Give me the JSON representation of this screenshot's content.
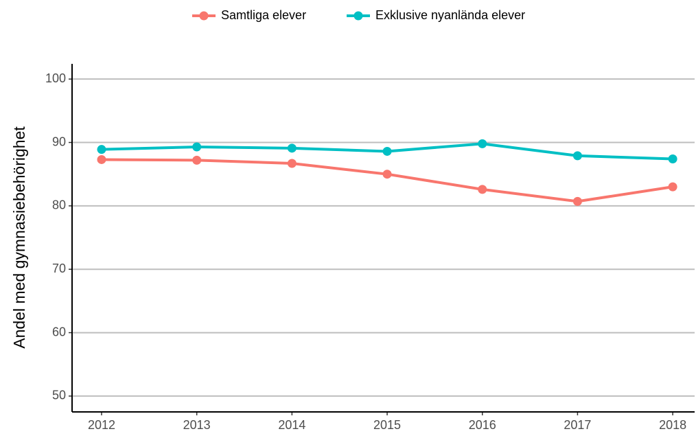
{
  "chart_data": {
    "type": "line",
    "y_label": "Andel med gymnasiebehörighet",
    "x": [
      2012,
      2013,
      2014,
      2015,
      2016,
      2017,
      2018
    ],
    "series": [
      {
        "name": "Samtliga elever",
        "color": "#f8766d",
        "values": [
          87.3,
          87.2,
          86.7,
          85.0,
          82.6,
          80.7,
          83.0
        ]
      },
      {
        "name": "Exklusive nyanlända elever",
        "color": "#00bfc4",
        "values": [
          88.9,
          89.3,
          89.1,
          88.6,
          89.8,
          87.9,
          87.4
        ]
      }
    ],
    "xlim": [
      2011.69,
      2018.23
    ],
    "xticks": [
      2012,
      2013,
      2014,
      2015,
      2016,
      2017,
      2018
    ],
    "ylim": [
      47.5,
      102.4
    ],
    "yticks": [
      50,
      60,
      70,
      80,
      90,
      100
    ],
    "grid": true,
    "legend": "top"
  }
}
